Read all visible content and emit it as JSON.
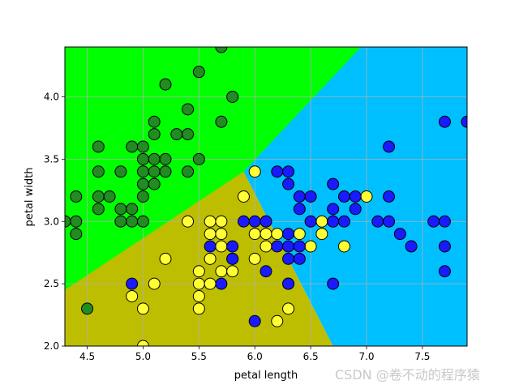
{
  "chart_data": {
    "type": "scatter",
    "title": "",
    "xlabel": "petal length",
    "ylabel": "petal width",
    "xlim": [
      4.3,
      7.9
    ],
    "ylim": [
      2.0,
      4.4
    ],
    "xticks": [
      4.5,
      5.0,
      5.5,
      6.0,
      6.5,
      7.0,
      7.5
    ],
    "yticks": [
      2.0,
      2.5,
      3.0,
      3.5,
      4.0
    ],
    "grid": true,
    "regions": [
      {
        "class": "green",
        "color": "#00ff00",
        "polygon": [
          [
            4.3,
            2.45
          ],
          [
            6.0,
            3.4
          ],
          [
            6.95,
            4.4
          ],
          [
            4.3,
            4.4
          ]
        ]
      },
      {
        "class": "olive",
        "color": "#bebe00",
        "polygon": [
          [
            4.3,
            2.0
          ],
          [
            6.7,
            2.0
          ],
          [
            5.9,
            3.4
          ],
          [
            4.3,
            2.45
          ]
        ]
      },
      {
        "class": "blue",
        "color": "#00bfff",
        "polygon": [
          [
            6.7,
            2.0
          ],
          [
            7.9,
            2.0
          ],
          [
            7.9,
            4.4
          ],
          [
            6.95,
            4.4
          ],
          [
            5.9,
            3.4
          ]
        ]
      }
    ],
    "series": [
      {
        "color": "#228b22",
        "points": [
          [
            4.4,
            2.9
          ],
          [
            4.3,
            3.0
          ],
          [
            4.4,
            3.0
          ],
          [
            4.4,
            3.2
          ],
          [
            4.5,
            2.3
          ],
          [
            4.6,
            3.1
          ],
          [
            4.6,
            3.2
          ],
          [
            4.6,
            3.4
          ],
          [
            4.6,
            3.6
          ],
          [
            4.7,
            3.2
          ],
          [
            4.8,
            3.0
          ],
          [
            4.8,
            3.1
          ],
          [
            4.8,
            3.4
          ],
          [
            4.9,
            3.0
          ],
          [
            4.9,
            3.1
          ],
          [
            4.9,
            3.6
          ],
          [
            5.0,
            3.0
          ],
          [
            5.0,
            3.2
          ],
          [
            5.0,
            3.3
          ],
          [
            5.0,
            3.4
          ],
          [
            5.0,
            3.5
          ],
          [
            5.0,
            3.6
          ],
          [
            5.1,
            3.3
          ],
          [
            5.1,
            3.4
          ],
          [
            5.1,
            3.5
          ],
          [
            5.1,
            3.7
          ],
          [
            5.1,
            3.8
          ],
          [
            5.2,
            3.4
          ],
          [
            5.2,
            3.5
          ],
          [
            5.2,
            4.1
          ],
          [
            5.3,
            3.7
          ],
          [
            5.4,
            3.4
          ],
          [
            5.4,
            3.7
          ],
          [
            5.4,
            3.9
          ],
          [
            5.5,
            3.5
          ],
          [
            5.5,
            4.2
          ],
          [
            5.7,
            3.8
          ],
          [
            5.7,
            4.4
          ],
          [
            5.8,
            4.0
          ]
        ]
      },
      {
        "color": "#ffff33",
        "points": [
          [
            4.9,
            2.4
          ],
          [
            5.0,
            2.0
          ],
          [
            5.0,
            2.3
          ],
          [
            5.1,
            2.5
          ],
          [
            5.2,
            2.7
          ],
          [
            5.4,
            3.0
          ],
          [
            5.5,
            2.3
          ],
          [
            5.5,
            2.4
          ],
          [
            5.5,
            2.5
          ],
          [
            5.5,
            2.6
          ],
          [
            5.6,
            2.5
          ],
          [
            5.6,
            2.7
          ],
          [
            5.6,
            2.9
          ],
          [
            5.6,
            3.0
          ],
          [
            5.7,
            2.6
          ],
          [
            5.7,
            2.8
          ],
          [
            5.7,
            2.9
          ],
          [
            5.7,
            3.0
          ],
          [
            5.8,
            2.6
          ],
          [
            5.8,
            2.7
          ],
          [
            5.9,
            3.2
          ],
          [
            6.0,
            2.7
          ],
          [
            6.0,
            2.9
          ],
          [
            6.0,
            3.4
          ],
          [
            6.1,
            2.8
          ],
          [
            6.1,
            2.9
          ],
          [
            6.1,
            3.0
          ],
          [
            6.2,
            2.2
          ],
          [
            6.2,
            2.9
          ],
          [
            6.3,
            2.3
          ],
          [
            6.3,
            2.5
          ],
          [
            6.4,
            2.9
          ],
          [
            6.5,
            2.8
          ],
          [
            6.6,
            2.9
          ],
          [
            6.6,
            3.0
          ],
          [
            6.7,
            3.0
          ],
          [
            6.8,
            2.8
          ],
          [
            7.0,
            3.2
          ]
        ]
      },
      {
        "color": "#1a1aff",
        "points": [
          [
            4.9,
            2.5
          ],
          [
            5.6,
            2.8
          ],
          [
            5.7,
            2.5
          ],
          [
            5.8,
            2.7
          ],
          [
            5.8,
            2.8
          ],
          [
            5.9,
            3.0
          ],
          [
            6.0,
            2.2
          ],
          [
            6.0,
            3.0
          ],
          [
            6.1,
            2.6
          ],
          [
            6.1,
            3.0
          ],
          [
            6.2,
            2.8
          ],
          [
            6.2,
            3.4
          ],
          [
            6.3,
            2.5
          ],
          [
            6.3,
            2.7
          ],
          [
            6.3,
            2.8
          ],
          [
            6.3,
            2.9
          ],
          [
            6.3,
            3.3
          ],
          [
            6.3,
            3.4
          ],
          [
            6.4,
            2.7
          ],
          [
            6.4,
            2.8
          ],
          [
            6.4,
            3.1
          ],
          [
            6.4,
            3.2
          ],
          [
            6.5,
            3.0
          ],
          [
            6.5,
            3.2
          ],
          [
            6.7,
            2.5
          ],
          [
            6.7,
            3.0
          ],
          [
            6.7,
            3.1
          ],
          [
            6.7,
            3.3
          ],
          [
            6.8,
            3.0
          ],
          [
            6.8,
            3.2
          ],
          [
            6.9,
            3.1
          ],
          [
            6.9,
            3.2
          ],
          [
            7.1,
            3.0
          ],
          [
            7.2,
            3.0
          ],
          [
            7.2,
            3.2
          ],
          [
            7.2,
            3.6
          ],
          [
            7.3,
            2.9
          ],
          [
            7.4,
            2.8
          ],
          [
            7.6,
            3.0
          ],
          [
            7.7,
            2.6
          ],
          [
            7.7,
            2.8
          ],
          [
            7.7,
            3.0
          ],
          [
            7.7,
            3.8
          ],
          [
            7.9,
            3.8
          ]
        ]
      }
    ]
  },
  "watermark": "CSDN @卷不动的程序猿"
}
